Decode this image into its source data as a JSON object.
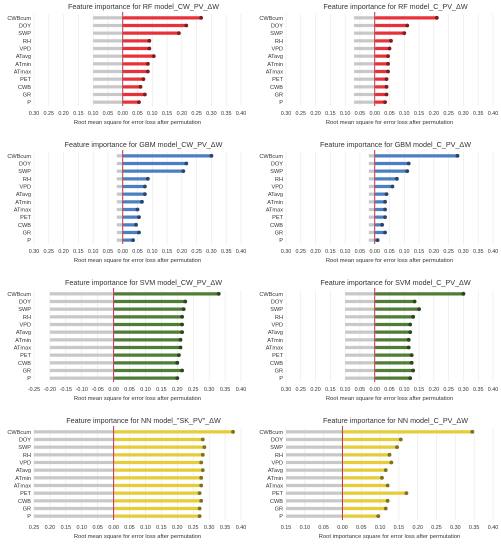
{
  "colors": {
    "rf": "#e8323a",
    "gbm": "#4a7fc1",
    "svm": "#4f7d35",
    "nn": "#e6cc37",
    "baseline": "#c8c8c8",
    "zero_line": "#c0304a",
    "grid": "#e8e8e8"
  },
  "chart_data": [
    {
      "type": "bar",
      "orientation": "horizontal",
      "color_key": "rf",
      "title": "Feature importance for RF model_CW_PV_ΔW",
      "xlabel": "Root mean square for error loss after permutation",
      "ylabel": "",
      "xlim": [
        -0.3,
        0.4
      ],
      "xticks": [
        "0.30",
        "0.25",
        "0.20",
        "0.15",
        "0.10",
        "0.05",
        "0.00",
        "0.05",
        "0.10",
        "0.15",
        "0.20",
        "0.25",
        "0.30",
        "0.35",
        "0.40"
      ],
      "grid": true,
      "categories": [
        "CWBcum",
        "DOY",
        "SWP",
        "RH",
        "VPD",
        "ATavg",
        "ATmin",
        "ATmax",
        "PET",
        "CWB",
        "GR",
        "P"
      ],
      "values": [
        0.265,
        0.215,
        0.19,
        0.09,
        0.09,
        0.105,
        0.085,
        0.085,
        0.07,
        0.06,
        0.075,
        0.055
      ],
      "baseline": [
        -0.1,
        -0.1,
        -0.1,
        -0.1,
        -0.1,
        -0.1,
        -0.1,
        -0.1,
        -0.1,
        -0.1,
        -0.1,
        -0.1
      ]
    },
    {
      "type": "bar",
      "orientation": "horizontal",
      "color_key": "rf",
      "title": "Feature importance for RF model_C_PV_ΔW",
      "xlabel": "Root mean square for error loss after permutation",
      "ylabel": "",
      "xlim": [
        -0.3,
        0.4
      ],
      "xticks": [
        "0.30",
        "0.25",
        "0.20",
        "0.15",
        "0.10",
        "0.05",
        "0.00",
        "0.05",
        "0.10",
        "0.15",
        "0.20",
        "0.25",
        "0.30",
        "0.35",
        "0.40"
      ],
      "grid": true,
      "categories": [
        "CWBcum",
        "DOY",
        "SWP",
        "RH",
        "VPD",
        "ATavg",
        "ATmin",
        "ATmax",
        "PET",
        "CWB",
        "GR",
        "P"
      ],
      "values": [
        0.21,
        0.11,
        0.1,
        0.055,
        0.05,
        0.045,
        0.045,
        0.045,
        0.04,
        0.04,
        0.04,
        0.035
      ],
      "baseline": [
        -0.07,
        -0.07,
        -0.07,
        -0.07,
        -0.07,
        -0.07,
        -0.07,
        -0.07,
        -0.07,
        -0.07,
        -0.07,
        -0.07
      ]
    },
    {
      "type": "bar",
      "orientation": "horizontal",
      "color_key": "gbm",
      "title": "Feature importance for GBM model_CW_PV_ΔW",
      "xlabel": "Root mean square for error loss after permutation",
      "ylabel": "",
      "xlim": [
        -0.3,
        0.4
      ],
      "xticks": [
        "0.30",
        "0.25",
        "0.20",
        "0.15",
        "0.10",
        "0.05",
        "0.00",
        "0.05",
        "0.10",
        "0.15",
        "0.20",
        "0.25",
        "0.30",
        "0.35",
        "0.40"
      ],
      "grid": true,
      "categories": [
        "CWBcum",
        "DOY",
        "SWP",
        "RH",
        "VPD",
        "ATavg",
        "ATmin",
        "ATmax",
        "PET",
        "CWB",
        "GR",
        "P"
      ],
      "values": [
        0.3,
        0.215,
        0.205,
        0.085,
        0.075,
        0.075,
        0.065,
        0.05,
        0.055,
        0.045,
        0.055,
        0.035
      ],
      "baseline": [
        -0.02,
        -0.02,
        -0.02,
        -0.02,
        -0.02,
        -0.02,
        -0.02,
        -0.02,
        -0.02,
        -0.02,
        -0.02,
        -0.02
      ]
    },
    {
      "type": "bar",
      "orientation": "horizontal",
      "color_key": "gbm",
      "title": "Feature importance for GBM model_C_PV_ΔW",
      "xlabel": "Root mean square for error loss after permutation",
      "ylabel": "",
      "xlim": [
        -0.3,
        0.4
      ],
      "xticks": [
        "0.30",
        "0.25",
        "0.20",
        "0.15",
        "0.10",
        "0.05",
        "0.00",
        "0.05",
        "0.10",
        "0.15",
        "0.20",
        "0.25",
        "0.30",
        "0.35",
        "0.40"
      ],
      "grid": true,
      "categories": [
        "CWBcum",
        "DOY",
        "SWP",
        "RH",
        "VPD",
        "ATavg",
        "ATmin",
        "ATmax",
        "PET",
        "CWB",
        "GR",
        "P"
      ],
      "values": [
        0.28,
        0.115,
        0.11,
        0.075,
        0.06,
        0.04,
        0.035,
        0.035,
        0.035,
        0.025,
        0.035,
        0.01
      ],
      "baseline": [
        -0.02,
        -0.02,
        -0.02,
        -0.02,
        -0.02,
        -0.02,
        -0.02,
        -0.02,
        -0.02,
        -0.02,
        -0.02,
        -0.02
      ]
    },
    {
      "type": "bar",
      "orientation": "horizontal",
      "color_key": "svm",
      "title": "Feature importance for SVM model_CW_PV_ΔW",
      "xlabel": "Root mean square for error loss after permutation",
      "ylabel": "",
      "xlim": [
        -0.25,
        0.4
      ],
      "xticks": [
        "-0.25",
        "-0.20",
        "-0.15",
        "-0.10",
        "-0.05",
        "0.00",
        "0.05",
        "0.10",
        "0.15",
        "0.20",
        "0.25",
        "0.30",
        "0.35",
        "0.40"
      ],
      "grid": true,
      "categories": [
        "CWBcum",
        "DOY",
        "SWP",
        "RH",
        "VPD",
        "ATavg",
        "ATmin",
        "ATmax",
        "PET",
        "CWB",
        "GR",
        "P"
      ],
      "values": [
        0.33,
        0.225,
        0.22,
        0.215,
        0.215,
        0.215,
        0.21,
        0.21,
        0.205,
        0.2,
        0.215,
        0.2
      ],
      "baseline": [
        -0.2,
        -0.2,
        -0.2,
        -0.2,
        -0.2,
        -0.2,
        -0.2,
        -0.2,
        -0.2,
        -0.2,
        -0.2,
        -0.2
      ]
    },
    {
      "type": "bar",
      "orientation": "horizontal",
      "color_key": "svm",
      "title": "Feature importance for SVM model_C_PV_ΔW",
      "xlabel": "Root mean square for error loss after permutation",
      "ylabel": "",
      "xlim": [
        -0.3,
        0.4
      ],
      "xticks": [
        "0.30",
        "0.25",
        "0.20",
        "0.15",
        "0.10",
        "0.05",
        "0.00",
        "0.05",
        "0.10",
        "0.15",
        "0.20",
        "0.25",
        "0.30",
        "0.35",
        "0.40"
      ],
      "grid": true,
      "categories": [
        "CWBcum",
        "DOY",
        "SWP",
        "RH",
        "VPD",
        "ATavg",
        "ATmin",
        "ATmax",
        "PET",
        "CWB",
        "GR",
        "P"
      ],
      "values": [
        0.3,
        0.135,
        0.15,
        0.13,
        0.12,
        0.12,
        0.115,
        0.115,
        0.125,
        0.125,
        0.13,
        0.12
      ],
      "baseline": [
        -0.1,
        -0.1,
        -0.1,
        -0.1,
        -0.1,
        -0.1,
        -0.1,
        -0.1,
        -0.1,
        -0.1,
        -0.1,
        -0.1
      ]
    },
    {
      "type": "bar",
      "orientation": "horizontal",
      "color_key": "nn",
      "title": "Feature importance for NN model_\"SK_PV\"_ΔW",
      "xlabel": "Root mean square for error loss after permutation",
      "ylabel": "",
      "xlim": [
        -0.25,
        0.4
      ],
      "xticks": [
        "0.25",
        "0.20",
        "0.15",
        "0.10",
        "0.05",
        "0.00",
        "0.05",
        "0.10",
        "0.15",
        "0.20",
        "0.25",
        "0.30",
        "0.35",
        "0.40"
      ],
      "grid": true,
      "categories": [
        "CWBcum",
        "DOY",
        "SWP",
        "RH",
        "VPD",
        "ATavg",
        "ATmin",
        "ATmax",
        "PET",
        "CWB",
        "GR",
        "P"
      ],
      "values": [
        0.375,
        0.28,
        0.285,
        0.28,
        0.275,
        0.28,
        0.275,
        0.275,
        0.27,
        0.275,
        0.27,
        0.27
      ],
      "baseline": [
        -0.25,
        -0.25,
        -0.25,
        -0.25,
        -0.25,
        -0.25,
        -0.25,
        -0.25,
        -0.25,
        -0.25,
        -0.25,
        -0.25
      ]
    },
    {
      "type": "bar",
      "orientation": "horizontal",
      "color_key": "nn",
      "title": "Feature importance for NN model_C_PV_ΔW",
      "xlabel": "Root importance square for error loss after permutation",
      "ylabel": "",
      "xlim": [
        -0.15,
        0.4
      ],
      "xticks": [
        "0.15",
        "0.10",
        "0.05",
        "0.00",
        "0.05",
        "0.10",
        "0.15",
        "0.20",
        "0.25",
        "0.30",
        "0.35",
        "0.40"
      ],
      "grid": true,
      "categories": [
        "CWBcum",
        "DOY",
        "SWP",
        "RH",
        "VPD",
        "ATavg",
        "ATmin",
        "ATmax",
        "PET",
        "CWB",
        "GR",
        "P"
      ],
      "values": [
        0.345,
        0.155,
        0.145,
        0.125,
        0.13,
        0.115,
        0.105,
        0.12,
        0.17,
        0.12,
        0.115,
        0.095
      ],
      "baseline": [
        -0.15,
        -0.15,
        -0.15,
        -0.15,
        -0.15,
        -0.15,
        -0.15,
        -0.15,
        -0.15,
        -0.15,
        -0.15,
        -0.15
      ]
    }
  ]
}
